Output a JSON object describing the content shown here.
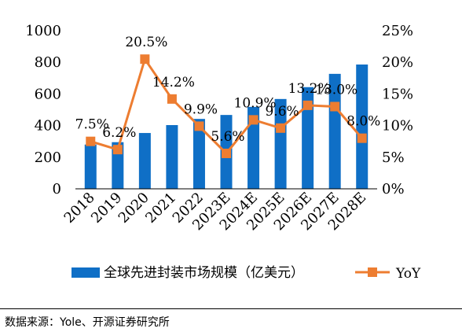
{
  "chart_data": {
    "type": "bar+line",
    "categories": [
      "2018",
      "2019",
      "2020",
      "2021",
      "2022",
      "2023E",
      "2024E",
      "2025E",
      "2026E",
      "2027E",
      "2028E"
    ],
    "series": [
      {
        "name": "全球先进封装市场规模（亿美元）",
        "type": "bar",
        "axis": "left",
        "color": "#0f6fc6",
        "values": [
          280,
          295,
          353,
          403,
          442,
          467,
          518,
          568,
          643,
          727,
          786
        ]
      },
      {
        "name": "YoY",
        "type": "line",
        "axis": "right",
        "color": "#ed7d31",
        "values": [
          7.5,
          6.2,
          20.5,
          14.2,
          9.9,
          5.6,
          10.9,
          9.6,
          13.2,
          13.0,
          8.0
        ],
        "labels": [
          "7.5%",
          "6.2%",
          "20.5%",
          "14.2%",
          "9.9%",
          "5.6%",
          "10.9%",
          "9.6%",
          "13.2%",
          "13.0%",
          "8.0%"
        ]
      }
    ],
    "left_axis": {
      "ylim": [
        0,
        1000
      ],
      "ticks": [
        "0",
        "200",
        "400",
        "600",
        "800",
        "1000"
      ]
    },
    "right_axis": {
      "ylim": [
        0,
        25
      ],
      "ticks": [
        "0%",
        "5%",
        "10%",
        "15%",
        "20%",
        "25%"
      ]
    },
    "grid": false,
    "legend_position": "bottom"
  },
  "source_note": "数据来源：Yole、开源证券研究所"
}
